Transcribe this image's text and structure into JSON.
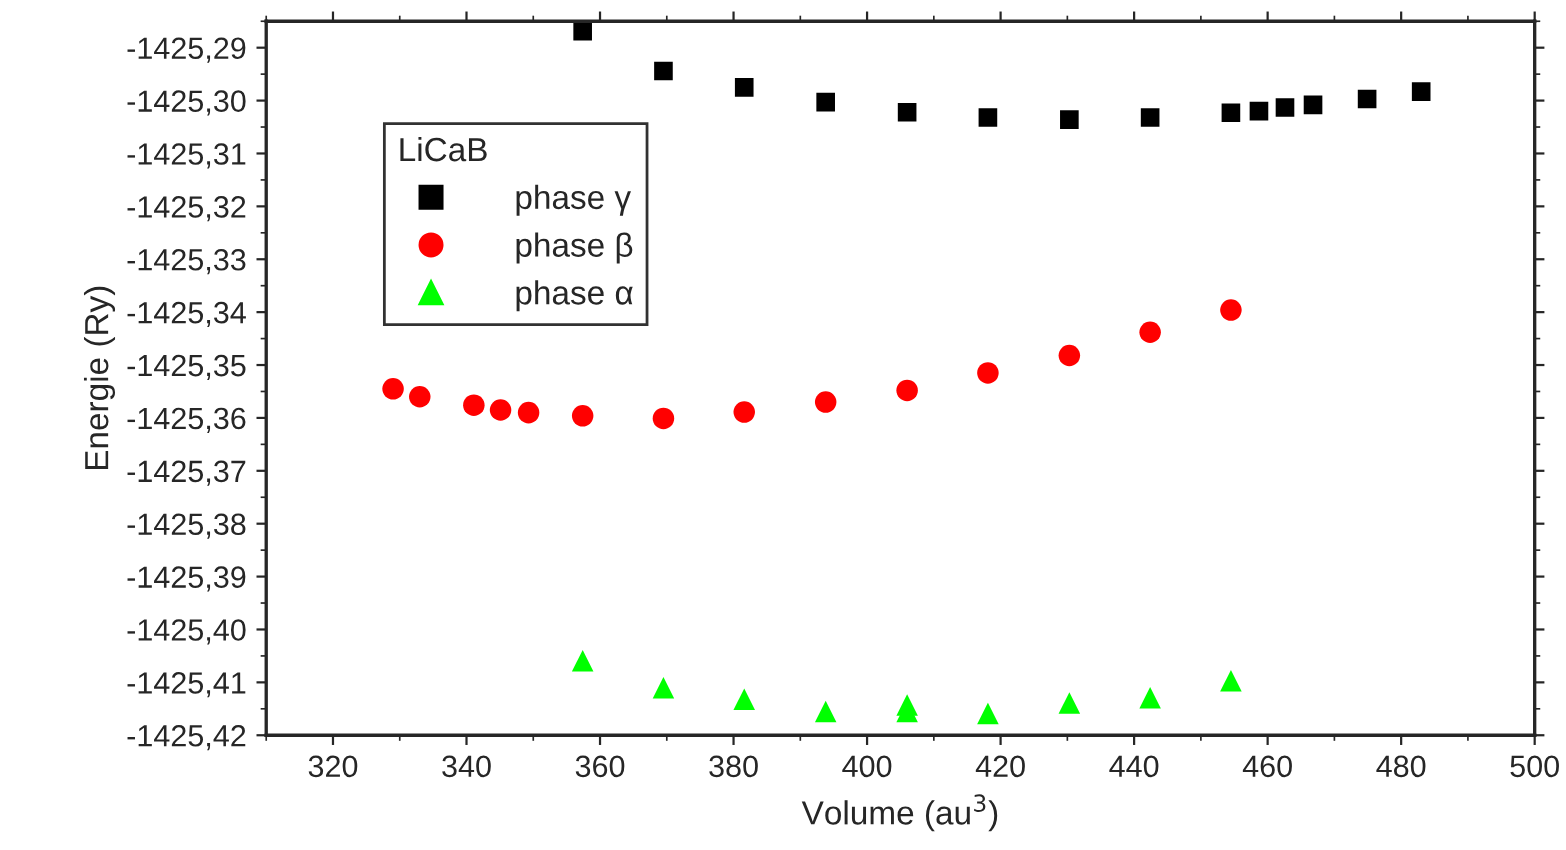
{
  "chart_data": {
    "type": "scatter",
    "xlabel": "Volume (au$^{3}$)",
    "ylabel": "Energie (Ry)",
    "legend_title": "LiCaB",
    "legend": "top left",
    "grid": false,
    "xlim": [
      310,
      500
    ],
    "xticks": [
      320,
      340,
      360,
      380,
      400,
      420,
      440,
      460,
      480,
      500
    ],
    "ylim": [
      -1425.42,
      -1425.285
    ],
    "yticks": [
      {
        "value": -1425.42,
        "label": "-1425,42"
      },
      {
        "value": -1425.41,
        "label": "-1425,41"
      },
      {
        "value": -1425.4,
        "label": "-1425,40"
      },
      {
        "value": -1425.39,
        "label": "-1425,39"
      },
      {
        "value": -1425.38,
        "label": "-1425,38"
      },
      {
        "value": -1425.37,
        "label": "-1425,37"
      },
      {
        "value": -1425.36,
        "label": "-1425,36"
      },
      {
        "value": -1425.35,
        "label": "-1425,35"
      },
      {
        "value": -1425.34,
        "label": "-1425,34"
      },
      {
        "value": -1425.33,
        "label": "-1425,33"
      },
      {
        "value": -1425.32,
        "label": "-1425,32"
      },
      {
        "value": -1425.31,
        "label": "-1425,31"
      },
      {
        "value": -1425.3,
        "label": "-1425,30"
      },
      {
        "value": -1425.29,
        "label": "-1425,29"
      }
    ],
    "series": [
      {
        "name": "phase γ",
        "color": "#000000",
        "marker": "square",
        "x": [
          357.4,
          369.5,
          381.6,
          393.8,
          406.0,
          418.1,
          430.3,
          442.4,
          454.5,
          458.7,
          462.6,
          466.8,
          474.9,
          483.0
        ],
        "values": [
          -1425.2869,
          -1425.2944,
          -1425.2975,
          -1425.3003,
          -1425.3022,
          -1425.3032,
          -1425.3036,
          -1425.3032,
          -1425.3023,
          -1425.302,
          -1425.3013,
          -1425.3008,
          -1425.2997,
          -1425.2983
        ]
      },
      {
        "name": "phase β",
        "color": "#ff0000",
        "marker": "circle",
        "x": [
          329.0,
          333.0,
          341.1,
          345.1,
          349.3,
          357.4,
          369.5,
          381.6,
          393.8,
          406.0,
          418.1,
          430.3,
          442.4,
          454.5
        ],
        "values": [
          -1425.3545,
          -1425.356,
          -1425.3576,
          -1425.3585,
          -1425.359,
          -1425.3596,
          -1425.3601,
          -1425.3589,
          -1425.357,
          -1425.3548,
          -1425.3515,
          -1425.3482,
          -1425.3438,
          -1425.3396
        ]
      },
      {
        "name": "phase α",
        "color": "#00ff00",
        "marker": "triangle",
        "x": [
          357.4,
          369.5,
          381.6,
          393.8,
          406.0,
          406.0,
          418.1,
          430.3,
          442.4,
          454.5
        ],
        "values": [
          -1425.4059,
          -1425.411,
          -1425.4132,
          -1425.4155,
          -1425.4143,
          -1425.4155,
          -1425.4159,
          -1425.4139,
          -1425.4129,
          -1425.4097
        ]
      }
    ]
  }
}
